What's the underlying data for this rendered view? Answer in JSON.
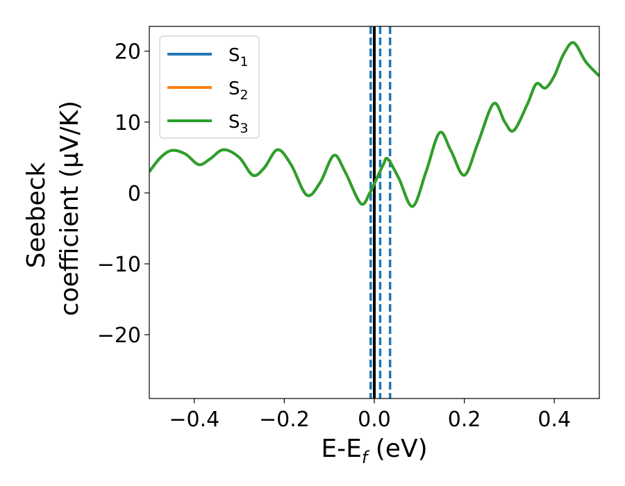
{
  "chart_data": {
    "type": "line",
    "xlabel": "E-E_f (eV)",
    "xlabel_parts": {
      "main": "E-E",
      "sub": "f",
      "unit": " (eV)"
    },
    "ylabel_line1": "Seebeck",
    "ylabel_line2": "coefficient  (μV/K)",
    "xlim": [
      -0.5,
      0.5
    ],
    "ylim": [
      -29,
      23.5
    ],
    "x_ticks": [
      -0.4,
      -0.2,
      0.0,
      0.2,
      0.4
    ],
    "x_tick_labels": [
      "−0.4",
      "−0.2",
      "0.0",
      "0.2",
      "0.4"
    ],
    "y_ticks": [
      -20,
      -10,
      0,
      10,
      20
    ],
    "y_tick_labels": [
      "−20",
      "−10",
      "0",
      "10",
      "20"
    ],
    "grid": false,
    "legend": {
      "position": "upper-left",
      "entries": [
        {
          "base": "S",
          "sub": "1",
          "color": "#1f77b4"
        },
        {
          "base": "S",
          "sub": "2",
          "color": "#ff7f0e"
        },
        {
          "base": "S",
          "sub": "3",
          "color": "#2ca02c"
        }
      ]
    },
    "vertical_lines": [
      {
        "x": -0.008,
        "style": "dashed",
        "color": "#1f77b4"
      },
      {
        "x": 0.0,
        "style": "solid",
        "color": "#000000"
      },
      {
        "x": 0.013,
        "style": "dashed",
        "color": "#1f77b4"
      },
      {
        "x": 0.035,
        "style": "dashed",
        "color": "#1f77b4"
      }
    ],
    "series": [
      {
        "name": "S1",
        "color": "#1f77b4",
        "x": [
          -0.5,
          -0.475,
          -0.45,
          -0.42,
          -0.39,
          -0.365,
          -0.335,
          -0.3,
          -0.27,
          -0.245,
          -0.215,
          -0.185,
          -0.15,
          -0.12,
          -0.09,
          -0.065,
          -0.03,
          -0.01,
          0.005,
          0.02,
          0.03,
          0.055,
          0.085,
          0.115,
          0.145,
          0.17,
          0.2,
          0.23,
          0.265,
          0.29,
          0.31,
          0.34,
          0.36,
          0.38,
          0.4,
          0.42,
          0.443,
          0.47,
          0.5
        ],
        "y": [
          3,
          5,
          6,
          5.5,
          4,
          4.8,
          6.1,
          5,
          2.5,
          3.5,
          6.1,
          4,
          -0.3,
          1.5,
          5.3,
          3,
          -1.5,
          0,
          2,
          4,
          4.8,
          2,
          -1.9,
          3,
          8.5,
          6,
          2.5,
          7,
          12.6,
          10,
          8.8,
          12.5,
          15.4,
          14.8,
          16.5,
          19.5,
          21.2,
          18.5,
          16.5
        ]
      },
      {
        "name": "S2",
        "color": "#ff7f0e",
        "x": [
          -0.5,
          -0.475,
          -0.45,
          -0.42,
          -0.39,
          -0.365,
          -0.335,
          -0.3,
          -0.27,
          -0.245,
          -0.215,
          -0.185,
          -0.15,
          -0.12,
          -0.09,
          -0.065,
          -0.03,
          -0.01,
          0.005,
          0.02,
          0.03,
          0.055,
          0.085,
          0.115,
          0.145,
          0.17,
          0.2,
          0.23,
          0.265,
          0.29,
          0.31,
          0.34,
          0.36,
          0.38,
          0.4,
          0.42,
          0.443,
          0.47,
          0.5
        ],
        "y": [
          3,
          5,
          6,
          5.5,
          4,
          4.8,
          6.1,
          5,
          2.5,
          3.5,
          6.1,
          4,
          -0.3,
          1.5,
          5.3,
          3,
          -1.5,
          0,
          2,
          4,
          4.8,
          2,
          -1.9,
          3,
          8.5,
          6,
          2.5,
          7,
          12.6,
          10,
          8.8,
          12.5,
          15.4,
          14.8,
          16.5,
          19.5,
          21.2,
          18.5,
          16.5
        ]
      },
      {
        "name": "S3",
        "color": "#2ca02c",
        "x": [
          -0.5,
          -0.475,
          -0.45,
          -0.42,
          -0.39,
          -0.365,
          -0.335,
          -0.3,
          -0.27,
          -0.245,
          -0.215,
          -0.185,
          -0.15,
          -0.12,
          -0.09,
          -0.065,
          -0.03,
          -0.01,
          0.005,
          0.02,
          0.03,
          0.055,
          0.085,
          0.115,
          0.145,
          0.17,
          0.2,
          0.23,
          0.265,
          0.29,
          0.31,
          0.34,
          0.36,
          0.38,
          0.4,
          0.42,
          0.443,
          0.47,
          0.5
        ],
        "y": [
          3,
          5,
          6,
          5.5,
          4,
          4.8,
          6.1,
          5,
          2.5,
          3.5,
          6.1,
          4,
          -0.3,
          1.5,
          5.3,
          3,
          -1.5,
          0,
          2,
          4,
          4.8,
          2,
          -1.9,
          3,
          8.5,
          6,
          2.5,
          7,
          12.6,
          10,
          8.8,
          12.5,
          15.4,
          14.8,
          16.5,
          19.5,
          21.2,
          18.5,
          16.5
        ]
      }
    ]
  }
}
